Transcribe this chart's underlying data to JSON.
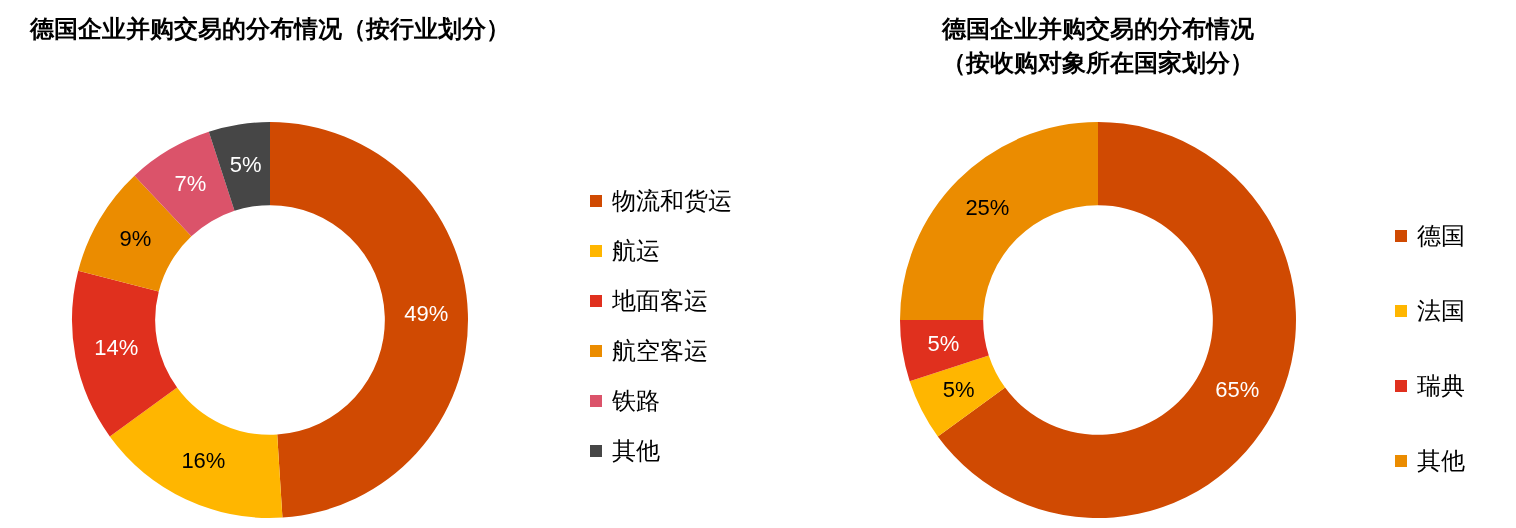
{
  "chart_data": [
    {
      "type": "donut",
      "title": "德国企业并购交易的分布情况（按行业划分）",
      "categories": [
        "物流和货运",
        "航运",
        "地面客运",
        "航空客运",
        "铁路",
        "其他"
      ],
      "values": [
        49,
        16,
        14,
        9,
        7,
        5
      ],
      "value_labels": [
        "49%",
        "16%",
        "14%",
        "9%",
        "7%",
        "5%"
      ],
      "colors": [
        "#d04a02",
        "#ffb600",
        "#e0301e",
        "#eb8c00",
        "#db536a",
        "#464646"
      ],
      "legend": "right"
    },
    {
      "type": "donut",
      "title": "德国企业并购交易的分布情况（按收购对象所在国家划分）",
      "categories": [
        "德国",
        "法国",
        "瑞典",
        "其他"
      ],
      "values": [
        65,
        5,
        5,
        25
      ],
      "value_labels": [
        "65%",
        "5%",
        "5%",
        "25%"
      ],
      "colors": [
        "#d04a02",
        "#ffb600",
        "#e0301e",
        "#eb8c00"
      ],
      "legend": "right"
    }
  ]
}
